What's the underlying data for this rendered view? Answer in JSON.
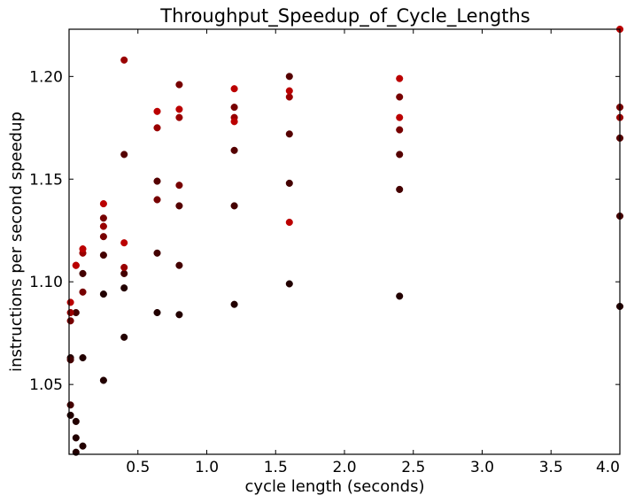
{
  "chart_data": {
    "type": "scatter",
    "title": "Throughput_Speedup_of_Cycle_Lengths",
    "xlabel": "cycle length (seconds)",
    "ylabel": "instructions per second speedup",
    "xlim": [
      0.0,
      4.0
    ],
    "ylim": [
      1.016,
      1.223
    ],
    "xticks": [
      0.5,
      1.0,
      1.5,
      2.0,
      2.5,
      3.0,
      3.5,
      4.0
    ],
    "xtick_labels": [
      "0.5",
      "1.0",
      "1.5",
      "2.0",
      "2.5",
      "3.0",
      "3.5",
      "4.0"
    ],
    "yticks": [
      1.05,
      1.1,
      1.15,
      1.2
    ],
    "ytick_labels": [
      "1.05",
      "1.10",
      "1.15",
      "1.20"
    ],
    "grid": false,
    "series": [
      {
        "color": "#220000",
        "points": [
          [
            0.01,
            1.035
          ],
          [
            0.01,
            1.063
          ],
          [
            0.05,
            1.032
          ],
          [
            0.05,
            1.024
          ],
          [
            0.05,
            1.017
          ],
          [
            0.1,
            1.063
          ],
          [
            0.1,
            1.02
          ],
          [
            0.25,
            1.094
          ],
          [
            0.25,
            1.052
          ],
          [
            0.4,
            1.097
          ],
          [
            0.4,
            1.073
          ],
          [
            0.64,
            1.085
          ],
          [
            0.8,
            1.084
          ],
          [
            1.2,
            1.089
          ],
          [
            1.6,
            1.099
          ],
          [
            2.4,
            1.093
          ],
          [
            4.0,
            1.088
          ]
        ]
      },
      {
        "color": "#440000",
        "points": [
          [
            0.01,
            1.062
          ],
          [
            0.01,
            1.04
          ],
          [
            0.05,
            1.085
          ],
          [
            0.1,
            1.104
          ],
          [
            0.25,
            1.113
          ],
          [
            0.4,
            1.104
          ],
          [
            0.64,
            1.114
          ],
          [
            0.8,
            1.108
          ],
          [
            1.2,
            1.137
          ],
          [
            1.6,
            1.148
          ],
          [
            2.4,
            1.145
          ],
          [
            4.0,
            1.132
          ]
        ]
      },
      {
        "color": "#550000",
        "points": [
          [
            0.4,
            1.162
          ],
          [
            0.64,
            1.149
          ],
          [
            0.8,
            1.137
          ],
          [
            1.2,
            1.164
          ],
          [
            1.6,
            1.172
          ],
          [
            1.6,
            1.2
          ],
          [
            2.4,
            1.162
          ],
          [
            4.0,
            1.17
          ]
        ]
      },
      {
        "color": "#770000",
        "points": [
          [
            0.01,
            1.081
          ],
          [
            0.1,
            1.095
          ],
          [
            0.25,
            1.131
          ],
          [
            0.25,
            1.122
          ],
          [
            0.64,
            1.14
          ],
          [
            0.8,
            1.147
          ],
          [
            0.8,
            1.196
          ],
          [
            1.2,
            1.185
          ],
          [
            2.4,
            1.174
          ],
          [
            2.4,
            1.19
          ],
          [
            4.0,
            1.185
          ]
        ]
      },
      {
        "color": "#990000",
        "points": [
          [
            0.01,
            1.085
          ],
          [
            0.05,
            1.108
          ],
          [
            0.1,
            1.114
          ],
          [
            0.25,
            1.127
          ],
          [
            0.4,
            1.107
          ],
          [
            0.4,
            1.208
          ],
          [
            0.64,
            1.175
          ],
          [
            0.8,
            1.18
          ],
          [
            1.2,
            1.18
          ],
          [
            1.6,
            1.19
          ],
          [
            4.0,
            1.18
          ]
        ]
      },
      {
        "color": "#bb0000",
        "points": [
          [
            0.01,
            1.09
          ],
          [
            0.05,
            1.108
          ],
          [
            0.1,
            1.116
          ],
          [
            0.25,
            1.138
          ],
          [
            0.4,
            1.119
          ],
          [
            0.64,
            1.183
          ],
          [
            0.8,
            1.184
          ],
          [
            1.2,
            1.194
          ],
          [
            1.2,
            1.178
          ],
          [
            1.6,
            1.193
          ],
          [
            1.6,
            1.129
          ],
          [
            2.4,
            1.199
          ],
          [
            2.4,
            1.18
          ],
          [
            4.0,
            1.223
          ]
        ]
      }
    ]
  }
}
